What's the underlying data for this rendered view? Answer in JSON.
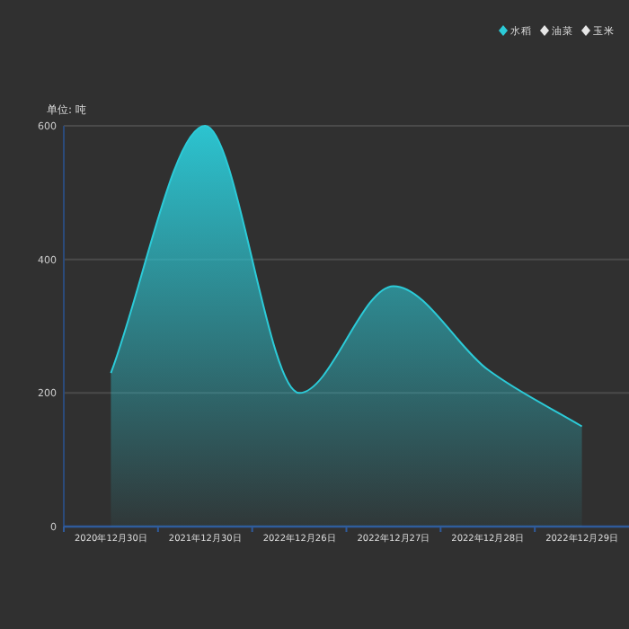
{
  "chart_data": {
    "type": "area",
    "ylabel": "单位: 吨",
    "categories": [
      "2020年12月30日",
      "2021年12月30日",
      "2022年12月26日",
      "2022年12月27日",
      "2022年12月28日",
      "2022年12月29日"
    ],
    "series": [
      {
        "name": "水稻",
        "color": "#2ccbd8",
        "values": [
          230,
          600,
          200,
          360,
          235,
          150
        ]
      },
      {
        "name": "油菜",
        "color": "#e6e6e6",
        "values": [
          null,
          null,
          null,
          null,
          null,
          null
        ]
      },
      {
        "name": "玉米",
        "color": "#e6e6e6",
        "values": [
          null,
          null,
          null,
          null,
          null,
          null
        ]
      }
    ],
    "ylim": [
      0,
      600
    ],
    "yticks": [
      0,
      200,
      400,
      600
    ],
    "grid": "y",
    "legend": "top right",
    "marker": "none"
  }
}
